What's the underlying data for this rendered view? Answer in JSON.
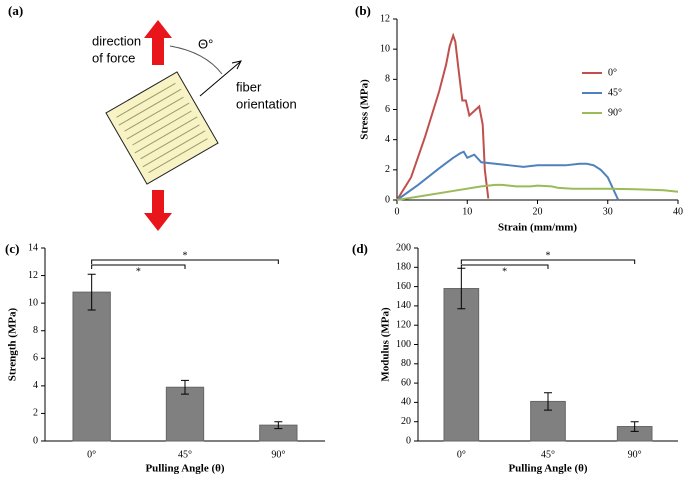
{
  "diagram": {
    "panel_label": "(a)",
    "force_label": [
      "direction",
      "of force"
    ],
    "angle_label": "Θ°",
    "fiber_label": [
      "fiber",
      "orientation"
    ]
  },
  "chart_data": [
    {
      "type": "line",
      "panel_label": "(b)",
      "x_label": "Strain (mm/mm)",
      "y_label": "Stress (MPa)",
      "xlim": [
        0,
        40
      ],
      "xticks": [
        0,
        10,
        20,
        30,
        40
      ],
      "ylim": [
        0,
        12
      ],
      "yticks": [
        0,
        2,
        4,
        6,
        8,
        10,
        12
      ],
      "legend": "upper right",
      "series": [
        {
          "name": "0°",
          "color": "#c0504d",
          "x": [
            0,
            2,
            4,
            6,
            7,
            7.5,
            8,
            8.3,
            8.8,
            9.3,
            9.8,
            10.3,
            11,
            11.7,
            12.2,
            12.5,
            13
          ],
          "values": [
            0,
            1.5,
            4.2,
            7.2,
            9,
            10.2,
            10.9,
            10.5,
            8.5,
            6.6,
            6.6,
            5.6,
            5.9,
            6.2,
            5,
            2,
            0.1
          ]
        },
        {
          "name": "45°",
          "color": "#4f81bd",
          "x": [
            0,
            3,
            6,
            8,
            9,
            9.5,
            10,
            11,
            12,
            14,
            16,
            18,
            20,
            22,
            24,
            26,
            27,
            28,
            29,
            30,
            31,
            31.5
          ],
          "values": [
            0,
            1,
            2.1,
            2.8,
            3.1,
            3.2,
            2.8,
            3,
            2.5,
            2.4,
            2.3,
            2.2,
            2.3,
            2.3,
            2.3,
            2.4,
            2.4,
            2.3,
            2,
            1.5,
            0.5,
            0
          ]
        },
        {
          "name": "90°",
          "color": "#9bbb59",
          "x": [
            0,
            4,
            8,
            12,
            14,
            15,
            17,
            19,
            20,
            22,
            23,
            25,
            30,
            35,
            38,
            40
          ],
          "values": [
            0,
            0.3,
            0.6,
            0.9,
            1,
            1,
            0.9,
            0.9,
            0.95,
            0.9,
            0.8,
            0.75,
            0.75,
            0.7,
            0.65,
            0.55
          ]
        }
      ]
    },
    {
      "type": "bar",
      "panel_label": "(c)",
      "x_label": "Pulling Angle (θ)",
      "y_label": "Strength (MPa)",
      "categories": [
        "0°",
        "45°",
        "90°"
      ],
      "values": [
        10.8,
        3.9,
        1.15
      ],
      "errors": [
        1.3,
        0.5,
        0.25
      ],
      "color": "#808080",
      "ylim": [
        0,
        14
      ],
      "yticks": [
        0,
        2,
        4,
        6,
        8,
        10,
        12,
        14
      ],
      "annotations": [
        "*",
        "*"
      ]
    },
    {
      "type": "bar",
      "panel_label": "(d)",
      "x_label": "Pulling Angle (θ)",
      "y_label": "Modulus (MPa)",
      "categories": [
        "0°",
        "45°",
        "90°"
      ],
      "values": [
        158,
        41,
        15
      ],
      "errors": [
        21,
        9,
        5
      ],
      "color": "#808080",
      "ylim": [
        0,
        200
      ],
      "yticks": [
        0,
        20,
        40,
        60,
        80,
        100,
        120,
        140,
        160,
        180,
        200
      ],
      "annotations": [
        "*",
        "*"
      ]
    }
  ]
}
